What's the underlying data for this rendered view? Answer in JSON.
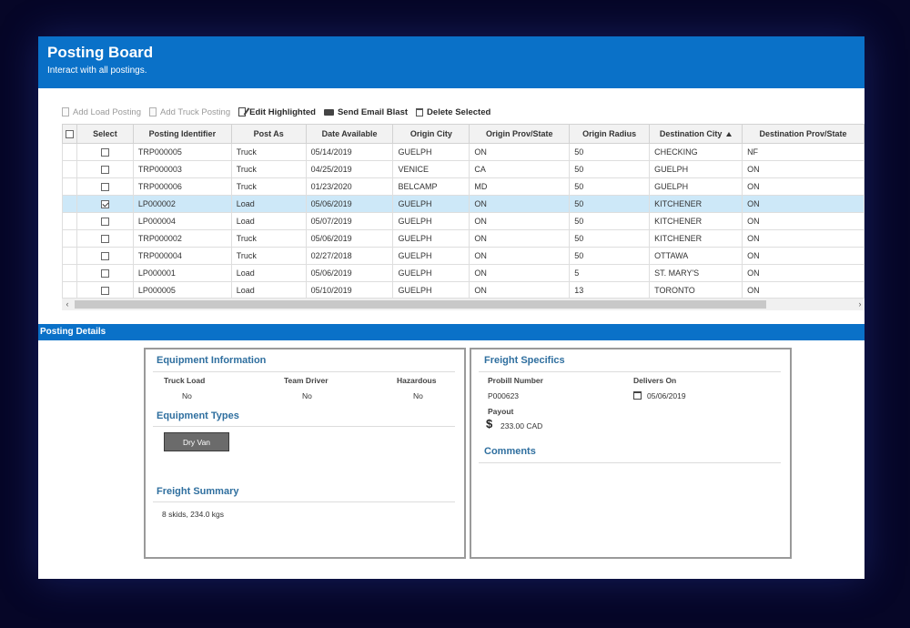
{
  "header": {
    "title": "Posting Board",
    "subtitle": "Interact with all postings."
  },
  "toolbar": {
    "add_load": "Add Load Posting",
    "add_truck": "Add Truck Posting",
    "edit_highlighted": "Edit Highlighted",
    "send_email_blast": "Send Email Blast",
    "delete_selected": "Delete Selected"
  },
  "table": {
    "columns": [
      "Select",
      "Posting Identifier",
      "Post As",
      "Date Available",
      "Origin City",
      "Origin Prov/State",
      "Origin Radius",
      "Destination City",
      "Destination Prov/State"
    ],
    "rows": [
      {
        "checked": false,
        "id": "TRP000005",
        "post_as": "Truck",
        "date": "05/14/2019",
        "origin_city": "GUELPH",
        "origin_prov": "ON",
        "radius": "50",
        "dest_city": "CHECKING",
        "dest_prov": "NF"
      },
      {
        "checked": false,
        "id": "TRP000003",
        "post_as": "Truck",
        "date": "04/25/2019",
        "origin_city": "VENICE",
        "origin_prov": "CA",
        "radius": "50",
        "dest_city": "GUELPH",
        "dest_prov": "ON"
      },
      {
        "checked": false,
        "id": "TRP000006",
        "post_as": "Truck",
        "date": "01/23/2020",
        "origin_city": "BELCAMP",
        "origin_prov": "MD",
        "radius": "50",
        "dest_city": "GUELPH",
        "dest_prov": "ON"
      },
      {
        "checked": true,
        "id": "LP000002",
        "post_as": "Load",
        "date": "05/06/2019",
        "origin_city": "GUELPH",
        "origin_prov": "ON",
        "radius": "50",
        "dest_city": "KITCHENER",
        "dest_prov": "ON"
      },
      {
        "checked": false,
        "id": "LP000004",
        "post_as": "Load",
        "date": "05/07/2019",
        "origin_city": "GUELPH",
        "origin_prov": "ON",
        "radius": "50",
        "dest_city": "KITCHENER",
        "dest_prov": "ON"
      },
      {
        "checked": false,
        "id": "TRP000002",
        "post_as": "Truck",
        "date": "05/06/2019",
        "origin_city": "GUELPH",
        "origin_prov": "ON",
        "radius": "50",
        "dest_city": "KITCHENER",
        "dest_prov": "ON"
      },
      {
        "checked": false,
        "id": "TRP000004",
        "post_as": "Truck",
        "date": "02/27/2018",
        "origin_city": "GUELPH",
        "origin_prov": "ON",
        "radius": "50",
        "dest_city": "OTTAWA",
        "dest_prov": "ON"
      },
      {
        "checked": false,
        "id": "LP000001",
        "post_as": "Load",
        "date": "05/06/2019",
        "origin_city": "GUELPH",
        "origin_prov": "ON",
        "radius": "5",
        "dest_city": "ST. MARY'S",
        "dest_prov": "ON"
      },
      {
        "checked": false,
        "id": "LP000005",
        "post_as": "Load",
        "date": "05/10/2019",
        "origin_city": "GUELPH",
        "origin_prov": "ON",
        "radius": "13",
        "dest_city": "TORONTO",
        "dest_prov": "ON"
      }
    ]
  },
  "details": {
    "bar_title": "Posting Details",
    "equipment": {
      "title": "Equipment Information",
      "truck_load_label": "Truck Load",
      "truck_load_value": "No",
      "team_driver_label": "Team Driver",
      "team_driver_value": "No",
      "hazardous_label": "Hazardous",
      "hazardous_value": "No"
    },
    "equipment_types": {
      "title": "Equipment Types",
      "chip": "Dry Van"
    },
    "freight_summary": {
      "title": "Freight Summary",
      "value": "8 skids, 234.0 kgs"
    },
    "freight_specifics": {
      "title": "Freight Specifics",
      "probill_label": "Probill Number",
      "probill_value": "P000623",
      "delivers_label": "Delivers On",
      "delivers_value": "05/06/2019",
      "payout_label": "Payout",
      "payout_value": "233.00 CAD",
      "currency_symbol": "$"
    },
    "comments": {
      "title": "Comments"
    }
  },
  "colors": {
    "accent": "#0a71c8",
    "selected_row": "#cde8f8",
    "section_title": "#2f6f9f",
    "backdrop": "#060627"
  }
}
